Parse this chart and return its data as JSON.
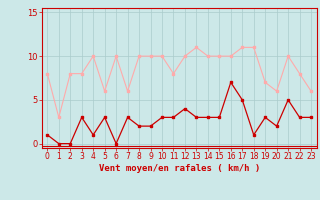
{
  "x": [
    0,
    1,
    2,
    3,
    4,
    5,
    6,
    7,
    8,
    9,
    10,
    11,
    12,
    13,
    14,
    15,
    16,
    17,
    18,
    19,
    20,
    21,
    22,
    23
  ],
  "wind_avg": [
    1,
    0,
    0,
    3,
    1,
    3,
    0,
    3,
    2,
    2,
    3,
    3,
    4,
    3,
    3,
    3,
    7,
    5,
    1,
    3,
    2,
    5,
    3,
    3
  ],
  "wind_gust": [
    8,
    3,
    8,
    8,
    10,
    6,
    10,
    6,
    10,
    10,
    10,
    8,
    10,
    11,
    10,
    10,
    10,
    11,
    11,
    7,
    6,
    10,
    8,
    6
  ],
  "avg_color": "#cc0000",
  "gust_color": "#ffaaaa",
  "bg_color": "#cce8e8",
  "grid_color": "#aacccc",
  "xlabel": "Vent moyen/en rafales ( km/h )",
  "ylabel_ticks": [
    0,
    5,
    10,
    15
  ],
  "xlim": [
    -0.5,
    23.5
  ],
  "ylim": [
    -0.5,
    15.5
  ],
  "label_fontsize": 6.5,
  "tick_fontsize": 6.0
}
